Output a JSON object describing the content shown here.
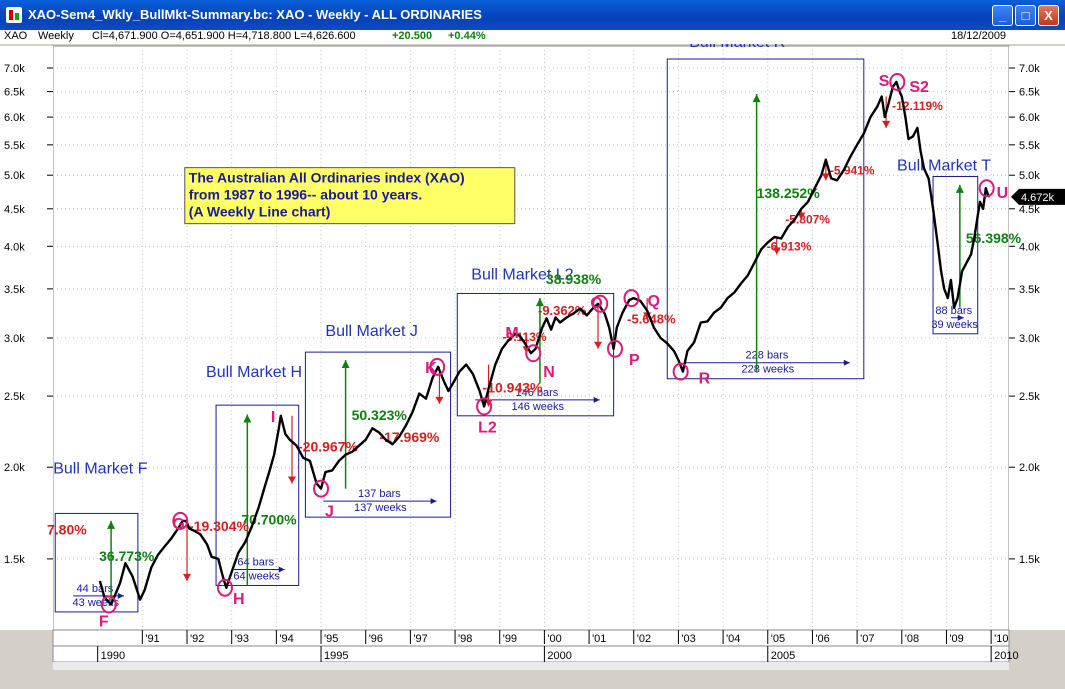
{
  "window": {
    "title": "XAO-Sem4_Wkly_BullMkt-Summary.bc: XAO - Weekly - ALL ORDINARIES",
    "minimize_label": "_",
    "maximize_label": "□",
    "close_label": "X"
  },
  "info": {
    "symbol": "XAO",
    "period": "Weekly",
    "ohlc": "Cl=4,671.900 O=4,651.900 H=4,718.800 L=4,626.600",
    "change": "+20.500",
    "change_pct": "+0.44%",
    "date": "18/12/2009"
  },
  "colors": {
    "price_line": "#000000",
    "box_border": "#1a1a99",
    "title_text": "#2233bb",
    "rise_green": "#108010",
    "fall_red": "#d42020",
    "pivot_pink": "#e0187a",
    "note_fill": "#ffff66"
  },
  "chart_data": {
    "type": "line",
    "title": "",
    "scale": "log",
    "ylim": [
      1200,
      7500
    ],
    "x_range": [
      1989.0,
      2010.4
    ],
    "grid": true,
    "y_ticks": [
      1500,
      2000,
      2500,
      3000,
      3500,
      4000,
      4500,
      5000,
      5500,
      6000,
      6500,
      7000
    ],
    "y_tick_labels": [
      "1.5k",
      "2.0k",
      "2.5k",
      "3.0k",
      "3.5k",
      "4.0k",
      "4.5k",
      "5.0k",
      "5.5k",
      "6.0k",
      "6.5k",
      "7.0k"
    ],
    "year_ticks": [
      1991,
      1992,
      1993,
      1994,
      1995,
      1996,
      1997,
      1998,
      1999,
      2000,
      2001,
      2002,
      2003,
      2004,
      2005,
      2006,
      2007,
      2008,
      2009,
      2010
    ],
    "year_tick_labels": [
      "'91",
      "'92",
      "'93",
      "'94",
      "'95",
      "'96",
      "'97",
      "'98",
      "'99",
      "'00",
      "'01",
      "'02",
      "'03",
      "'04",
      "'05",
      "'06",
      "'07",
      "'08",
      "'09",
      "'10"
    ],
    "decade_labels": [
      {
        "x": 1990.0,
        "label": "1990"
      },
      {
        "x": 1995.0,
        "label": "1995"
      },
      {
        "x": 2000.0,
        "label": "2000"
      },
      {
        "x": 2005.0,
        "label": "2005"
      },
      {
        "x": 2010.0,
        "label": "2010"
      }
    ],
    "last_value_label": "4.672k",
    "note": [
      "The Australian All Ordinaries index (XAO)",
      "from 1987 to 1996-- about 10 years.",
      "(A Weekly Line chart)"
    ],
    "series": [
      {
        "points": [
          [
            1990.05,
            1400
          ],
          [
            1990.15,
            1330
          ],
          [
            1990.3,
            1300
          ],
          [
            1990.5,
            1390
          ],
          [
            1990.62,
            1480
          ],
          [
            1990.78,
            1420
          ],
          [
            1990.95,
            1320
          ],
          [
            1991.05,
            1360
          ],
          [
            1991.2,
            1460
          ],
          [
            1991.35,
            1520
          ],
          [
            1991.5,
            1560
          ],
          [
            1991.65,
            1600
          ],
          [
            1991.8,
            1650
          ],
          [
            1991.9,
            1690
          ],
          [
            1991.98,
            1690
          ],
          [
            1992.05,
            1650
          ],
          [
            1992.15,
            1640
          ],
          [
            1992.3,
            1620
          ],
          [
            1992.45,
            1570
          ],
          [
            1992.55,
            1510
          ],
          [
            1992.7,
            1500
          ],
          [
            1992.8,
            1420
          ],
          [
            1992.88,
            1370
          ],
          [
            1993.0,
            1440
          ],
          [
            1993.15,
            1530
          ],
          [
            1993.3,
            1580
          ],
          [
            1993.45,
            1660
          ],
          [
            1993.6,
            1760
          ],
          [
            1993.75,
            1890
          ],
          [
            1993.85,
            1980
          ],
          [
            1993.95,
            2080
          ],
          [
            1994.05,
            2250
          ],
          [
            1994.1,
            2350
          ],
          [
            1994.2,
            2220
          ],
          [
            1994.3,
            2180
          ],
          [
            1994.45,
            2140
          ],
          [
            1994.6,
            2060
          ],
          [
            1994.75,
            2040
          ],
          [
            1994.9,
            1900
          ],
          [
            1995.0,
            1870
          ],
          [
            1995.1,
            1970
          ],
          [
            1995.25,
            1980
          ],
          [
            1995.4,
            2040
          ],
          [
            1995.55,
            2080
          ],
          [
            1995.7,
            2100
          ],
          [
            1995.85,
            2140
          ],
          [
            1996.0,
            2180
          ],
          [
            1996.15,
            2260
          ],
          [
            1996.3,
            2230
          ],
          [
            1996.45,
            2180
          ],
          [
            1996.6,
            2150
          ],
          [
            1996.75,
            2200
          ],
          [
            1996.9,
            2280
          ],
          [
            1997.05,
            2380
          ],
          [
            1997.2,
            2520
          ],
          [
            1997.35,
            2480
          ],
          [
            1997.5,
            2650
          ],
          [
            1997.62,
            2740
          ],
          [
            1997.75,
            2620
          ],
          [
            1997.85,
            2540
          ],
          [
            1997.95,
            2600
          ],
          [
            1998.1,
            2700
          ],
          [
            1998.25,
            2760
          ],
          [
            1998.4,
            2680
          ],
          [
            1998.55,
            2540
          ],
          [
            1998.65,
            2420
          ],
          [
            1998.75,
            2560
          ],
          [
            1998.9,
            2760
          ],
          [
            1999.05,
            2900
          ],
          [
            1999.2,
            2980
          ],
          [
            1999.35,
            3040
          ],
          [
            1999.45,
            3020
          ],
          [
            1999.55,
            2960
          ],
          [
            1999.7,
            2860
          ],
          [
            1999.8,
            2900
          ],
          [
            1999.95,
            3100
          ],
          [
            2000.05,
            3190
          ],
          [
            2000.15,
            3080
          ],
          [
            2000.25,
            3200
          ],
          [
            2000.35,
            3150
          ],
          [
            2000.5,
            3200
          ],
          [
            2000.65,
            3240
          ],
          [
            2000.8,
            3290
          ],
          [
            2000.95,
            3220
          ],
          [
            2001.1,
            3300
          ],
          [
            2001.2,
            3340
          ],
          [
            2001.35,
            3240
          ],
          [
            2001.45,
            3100
          ],
          [
            2001.55,
            2900
          ],
          [
            2001.62,
            3100
          ],
          [
            2001.75,
            3250
          ],
          [
            2001.9,
            3380
          ],
          [
            2002.0,
            3400
          ],
          [
            2002.15,
            3370
          ],
          [
            2002.3,
            3270
          ],
          [
            2002.45,
            3100
          ],
          [
            2002.6,
            3000
          ],
          [
            2002.75,
            2950
          ],
          [
            2002.9,
            2880
          ],
          [
            2003.0,
            2800
          ],
          [
            2003.1,
            2700
          ],
          [
            2003.2,
            2880
          ],
          [
            2003.35,
            2960
          ],
          [
            2003.5,
            3150
          ],
          [
            2003.65,
            3160
          ],
          [
            2003.8,
            3250
          ],
          [
            2003.95,
            3300
          ],
          [
            2004.1,
            3400
          ],
          [
            2004.25,
            3460
          ],
          [
            2004.4,
            3560
          ],
          [
            2004.55,
            3650
          ],
          [
            2004.7,
            3800
          ],
          [
            2004.85,
            3960
          ],
          [
            2005.0,
            4050
          ],
          [
            2005.15,
            4120
          ],
          [
            2005.3,
            4100
          ],
          [
            2005.45,
            4250
          ],
          [
            2005.6,
            4350
          ],
          [
            2005.75,
            4500
          ],
          [
            2005.9,
            4600
          ],
          [
            2006.05,
            4800
          ],
          [
            2006.2,
            5000
          ],
          [
            2006.3,
            5250
          ],
          [
            2006.42,
            4950
          ],
          [
            2006.55,
            4920
          ],
          [
            2006.7,
            5080
          ],
          [
            2006.85,
            5300
          ],
          [
            2007.0,
            5500
          ],
          [
            2007.15,
            5700
          ],
          [
            2007.3,
            6000
          ],
          [
            2007.45,
            6200
          ],
          [
            2007.55,
            6400
          ],
          [
            2007.62,
            6000
          ],
          [
            2007.7,
            6250
          ],
          [
            2007.8,
            6600
          ],
          [
            2007.88,
            6700
          ],
          [
            2007.95,
            6500
          ],
          [
            2008.0,
            6400
          ],
          [
            2008.08,
            6000
          ],
          [
            2008.15,
            5600
          ],
          [
            2008.25,
            5650
          ],
          [
            2008.35,
            5800
          ],
          [
            2008.42,
            5400
          ],
          [
            2008.5,
            5100
          ],
          [
            2008.6,
            4950
          ],
          [
            2008.7,
            4500
          ],
          [
            2008.8,
            4050
          ],
          [
            2008.88,
            3700
          ],
          [
            2008.95,
            3500
          ],
          [
            2009.03,
            3400
          ],
          [
            2009.1,
            3600
          ],
          [
            2009.17,
            3300
          ],
          [
            2009.25,
            3400
          ],
          [
            2009.35,
            3700
          ],
          [
            2009.45,
            3800
          ],
          [
            2009.55,
            3900
          ],
          [
            2009.62,
            4100
          ],
          [
            2009.7,
            4400
          ],
          [
            2009.75,
            4600
          ],
          [
            2009.82,
            4500
          ],
          [
            2009.88,
            4800
          ],
          [
            2009.93,
            4700
          ],
          [
            2009.97,
            4672
          ]
        ]
      }
    ],
    "markets": [
      {
        "title": "Bull Market F",
        "x0": 1989.05,
        "x1": 1990.9,
        "y_low": 1270,
        "y_high": 1730,
        "bars": "44 bars",
        "weeks": "43 weeks",
        "pct": "36.773%"
      },
      {
        "title": "Bull Market H",
        "x0": 1992.65,
        "x1": 1994.5,
        "y_low": 1380,
        "y_high": 2430,
        "bars": "64 bars",
        "weeks": "64 weeks",
        "pct": "70.700%"
      },
      {
        "title": "Bull Market J",
        "x0": 1994.65,
        "x1": 1997.9,
        "y_low": 1710,
        "y_high": 2870,
        "bars": "137 bars",
        "weeks": "137 weeks",
        "pct": "50.323%"
      },
      {
        "title": "Bull Market L2",
        "x0": 1998.05,
        "x1": 2001.55,
        "y_low": 2350,
        "y_high": 3450,
        "bars": "146 bars",
        "weeks": "146 weeks",
        "pct": "38.938%"
      },
      {
        "title": "Bull Market R",
        "x0": 2002.75,
        "x1": 2007.15,
        "y_low": 2640,
        "y_high": 7200,
        "bars": "228 bars",
        "weeks": "228 weeks",
        "pct": "138.252%"
      },
      {
        "title": "Bull Market T",
        "x0": 2008.7,
        "x1": 2009.7,
        "y_low": 3040,
        "y_high": 4980,
        "bars": "88 bars",
        "weeks": "39 weeks",
        "pct": "56.398%"
      }
    ],
    "declines": [
      {
        "pct": "-19.304%"
      },
      {
        "pct": "-20.967%"
      },
      {
        "pct": "-17.969%"
      },
      {
        "pct": "-10.943%"
      },
      {
        "pct": "-9.113%"
      },
      {
        "pct": "-9.362%"
      },
      {
        "pct": "-5.648%"
      },
      {
        "pct": "-5.941%"
      },
      {
        "pct": "-5.807%"
      },
      {
        "pct": "-6.913%"
      },
      {
        "pct": "-12.119%"
      }
    ],
    "edge_label": "7.80%",
    "pivots": [
      "F",
      "G",
      "H",
      "I",
      "J",
      "K",
      "L2",
      "M",
      "N",
      "O",
      "P",
      "Q",
      "R",
      "S",
      "S2",
      "U"
    ],
    "pivot_values": {
      "F": 1300,
      "G": 1690,
      "H": 1370,
      "I": 2350,
      "J": 1870,
      "K": 2740,
      "L2": 2420,
      "M": 3040,
      "N": 2860,
      "O": 3340,
      "P": 2900,
      "Q": 3400,
      "R": 2700,
      "S": 6700,
      "S2": 6700,
      "U": 4800
    }
  }
}
